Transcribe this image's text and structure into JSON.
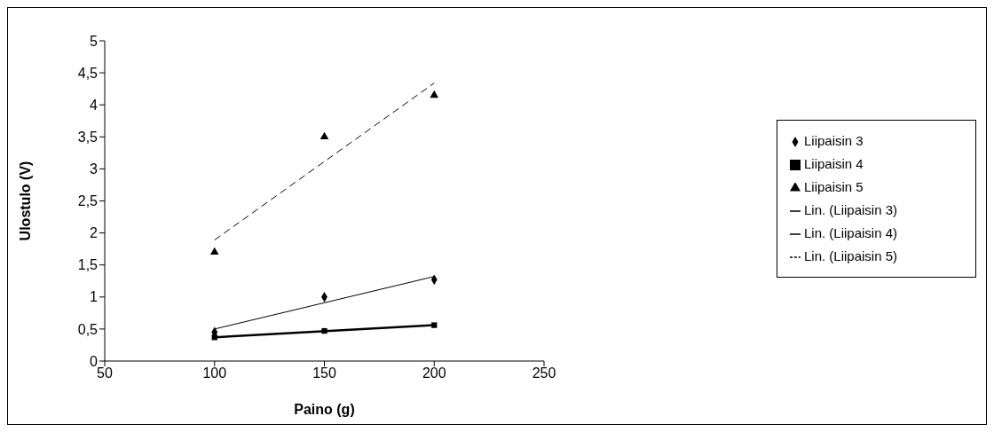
{
  "chart_data": {
    "type": "scatter",
    "xlabel": "Paino (g)",
    "ylabel": "Ulostulo (V)",
    "xlim": [
      50,
      250
    ],
    "xticks": [
      50,
      100,
      150,
      200,
      250
    ],
    "ylim": [
      0,
      5
    ],
    "yticks": [
      0,
      {
        "value": 0.5,
        "label": "0,5"
      },
      1,
      {
        "value": 1.5,
        "label": "1,5"
      },
      2,
      {
        "value": 2.5,
        "label": "2,5"
      },
      3,
      {
        "value": 3.5,
        "label": "3,5"
      },
      4,
      {
        "value": 4.5,
        "label": "4,5"
      },
      5
    ],
    "grid": false,
    "legend": "right",
    "series": [
      {
        "name": "Liipaisin 3",
        "color": "#000000",
        "marker": "diamond",
        "x": [
          100,
          150,
          200
        ],
        "values": [
          0.45,
          1.0,
          1.27
        ]
      },
      {
        "name": "Liipaisin 4",
        "color": "#000000",
        "marker": "square",
        "x": [
          100,
          150,
          200
        ],
        "values": [
          0.37,
          0.47,
          0.56
        ]
      },
      {
        "name": "Liipaisin 5",
        "color": "#000000",
        "marker": "triangle",
        "x": [
          100,
          150,
          200
        ],
        "values": [
          1.7,
          3.5,
          4.15
        ]
      },
      {
        "type": "line",
        "name": "Lin. (Liipaisin 3)",
        "color": "#000000",
        "line_style": "solid",
        "x": [
          100,
          200
        ],
        "values": [
          0.5,
          1.32
        ]
      },
      {
        "type": "line",
        "name": "Lin. (Liipaisin 4)",
        "color": "#000000",
        "line_style": "solid",
        "x": [
          100,
          200
        ],
        "values": [
          0.37,
          0.56
        ]
      },
      {
        "type": "line",
        "name": "Lin. (Liipaisin 5)",
        "color": "#000000",
        "line_style": "dashed",
        "x": [
          100,
          200
        ],
        "values": [
          1.89,
          4.34
        ]
      }
    ]
  }
}
